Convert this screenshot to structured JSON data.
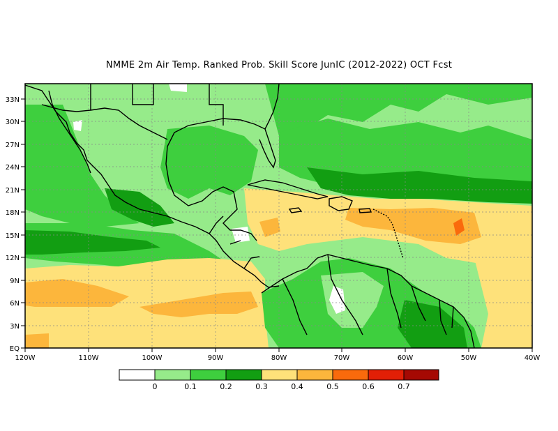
{
  "title": "NMME  2m Air Temp. Ranked Prob. Skill Score JunIC (2012-2022) OCT Fcst",
  "map": {
    "lon_range": [
      -120,
      -40
    ],
    "lat_range": [
      0,
      35
    ],
    "x_ticks": [
      "120W",
      "110W",
      "100W",
      "90W",
      "80W",
      "70W",
      "60W",
      "50W",
      "40W"
    ],
    "y_ticks": [
      "EQ",
      "3N",
      "6N",
      "9N",
      "12N",
      "15N",
      "18N",
      "21N",
      "24N",
      "27N",
      "30N",
      "33N"
    ],
    "gridlines": true
  },
  "colorbar": {
    "colors": [
      "#ffffff",
      "#96eb8a",
      "#3ecf3e",
      "#129e12",
      "#fee17a",
      "#fcb63c",
      "#fa6a0c",
      "#e21f06",
      "#a50903"
    ],
    "labels": [
      "0",
      "0.1",
      "0.2",
      "0.3",
      "0.4",
      "0.5",
      "0.6",
      "0.7"
    ]
  }
}
